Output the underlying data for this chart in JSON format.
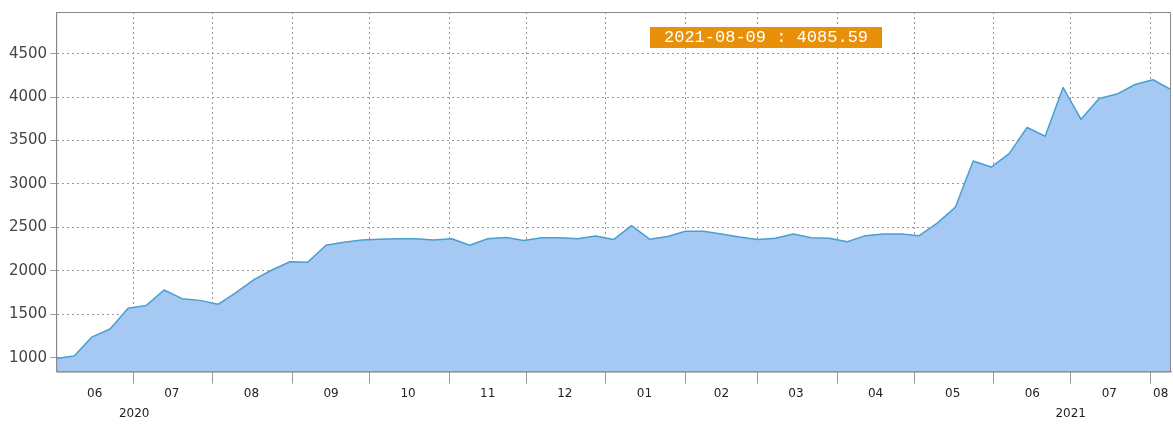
{
  "chart_data": {
    "type": "area",
    "x": [
      "2020-06-01",
      "2020-06-08",
      "2020-06-15",
      "2020-06-22",
      "2020-06-29",
      "2020-07-06",
      "2020-07-13",
      "2020-07-20",
      "2020-07-27",
      "2020-08-03",
      "2020-08-10",
      "2020-08-17",
      "2020-08-24",
      "2020-08-31",
      "2020-09-07",
      "2020-09-14",
      "2020-09-21",
      "2020-09-28",
      "2020-10-05",
      "2020-10-12",
      "2020-10-19",
      "2020-10-26",
      "2020-11-02",
      "2020-11-09",
      "2020-11-16",
      "2020-11-23",
      "2020-11-30",
      "2020-12-07",
      "2020-12-14",
      "2020-12-21",
      "2020-12-28",
      "2021-01-04",
      "2021-01-11",
      "2021-01-18",
      "2021-01-25",
      "2021-02-01",
      "2021-02-08",
      "2021-02-15",
      "2021-02-22",
      "2021-03-01",
      "2021-03-08",
      "2021-03-15",
      "2021-03-22",
      "2021-03-29",
      "2021-04-05",
      "2021-04-12",
      "2021-04-19",
      "2021-04-26",
      "2021-05-03",
      "2021-05-10",
      "2021-05-17",
      "2021-05-24",
      "2021-05-31",
      "2021-06-07",
      "2021-06-14",
      "2021-06-21",
      "2021-06-28",
      "2021-07-05",
      "2021-07-12",
      "2021-07-19",
      "2021-07-26",
      "2021-08-02",
      "2021-08-09"
    ],
    "series": [
      {
        "color": "#4a9fd0",
        "values": [
          990,
          1020,
          1240,
          1330,
          1570,
          1600,
          1780,
          1680,
          1660,
          1615,
          1750,
          1900,
          2010,
          2105,
          2100,
          2295,
          2330,
          2355,
          2365,
          2370,
          2370,
          2355,
          2370,
          2295,
          2370,
          2385,
          2350,
          2380,
          2380,
          2370,
          2400,
          2360,
          2520,
          2365,
          2395,
          2455,
          2455,
          2425,
          2390,
          2360,
          2375,
          2425,
          2380,
          2375,
          2335,
          2405,
          2425,
          2425,
          2405,
          2550,
          2730,
          3265,
          3195,
          3350,
          3650,
          3550,
          4110,
          3745,
          3985,
          4035,
          4145,
          4200,
          4085.59
        ]
      }
    ],
    "xlim": [
      "2020-06-01",
      "2021-08-09"
    ],
    "xticks": [
      {
        "value": "2020-06-16",
        "label": "06"
      },
      {
        "value": "2020-07-01",
        "label": null
      },
      {
        "value": "2020-07-16",
        "label": "07"
      },
      {
        "value": "2020-08-01",
        "label": null
      },
      {
        "value": "2020-08-16",
        "label": "08"
      },
      {
        "value": "2020-09-01",
        "label": null
      },
      {
        "value": "2020-09-16",
        "label": "09"
      },
      {
        "value": "2020-10-01",
        "label": null
      },
      {
        "value": "2020-10-16",
        "label": "10"
      },
      {
        "value": "2020-11-01",
        "label": null
      },
      {
        "value": "2020-11-16",
        "label": "11"
      },
      {
        "value": "2020-12-01",
        "label": null
      },
      {
        "value": "2020-12-16",
        "label": "12"
      },
      {
        "value": "2021-01-01",
        "label": null
      },
      {
        "value": "2021-01-16",
        "label": "01"
      },
      {
        "value": "2021-02-01",
        "label": null
      },
      {
        "value": "2021-02-15",
        "label": "02"
      },
      {
        "value": "2021-03-01",
        "label": null
      },
      {
        "value": "2021-03-16",
        "label": "03"
      },
      {
        "value": "2021-04-01",
        "label": null
      },
      {
        "value": "2021-04-16",
        "label": "04"
      },
      {
        "value": "2021-05-01",
        "label": null
      },
      {
        "value": "2021-05-16",
        "label": "05"
      },
      {
        "value": "2021-06-01",
        "label": null
      },
      {
        "value": "2021-06-16",
        "label": "06"
      },
      {
        "value": "2021-07-01",
        "label": null
      },
      {
        "value": "2021-07-16",
        "label": "07"
      },
      {
        "value": "2021-08-01",
        "label": null
      },
      {
        "value": "2021-08-05",
        "label": "08"
      }
    ],
    "ylim": [
      840,
      4980
    ],
    "yticks": [
      1000,
      1500,
      2000,
      2500,
      3000,
      3500,
      4000,
      4500
    ],
    "grid": true,
    "line_style": "solid",
    "annotations": [
      "2021-08-09 : 4085.59",
      "2020",
      "2021"
    ]
  }
}
